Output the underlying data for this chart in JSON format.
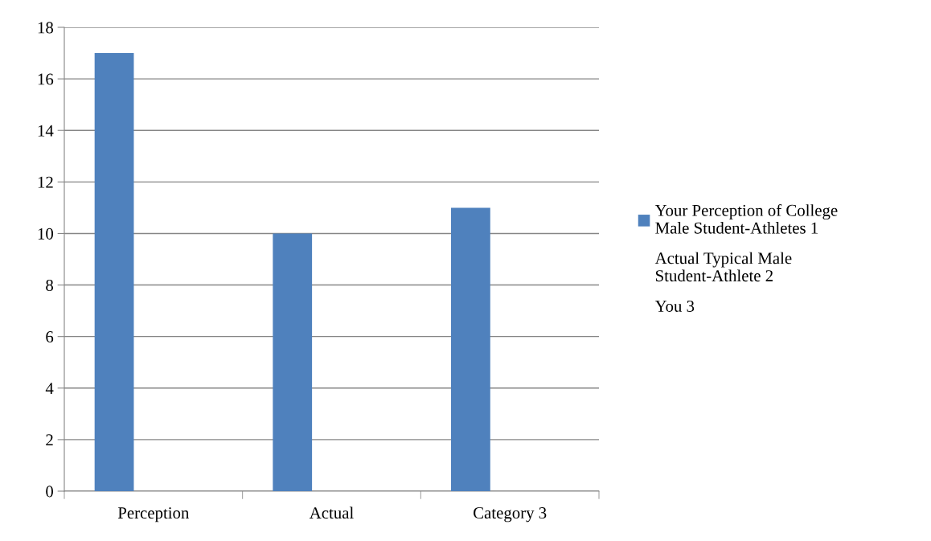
{
  "chart_data": {
    "type": "bar",
    "categories": [
      "Perception",
      "Actual",
      "Category 3"
    ],
    "series": [
      {
        "name": "Your Perception of College Male Student-Athletes 1",
        "color": "#4f81bd",
        "values": [
          17,
          10,
          11
        ]
      },
      {
        "name": "Actual Typical Male Student-Athlete 2",
        "values": [
          null,
          null,
          null
        ]
      },
      {
        "name": "You 3",
        "values": [
          null,
          null,
          null
        ]
      }
    ],
    "ylim": [
      0,
      18
    ],
    "yticks": [
      0,
      2,
      4,
      6,
      8,
      10,
      12,
      14,
      16,
      18
    ],
    "grid": "y",
    "legend": "right"
  }
}
